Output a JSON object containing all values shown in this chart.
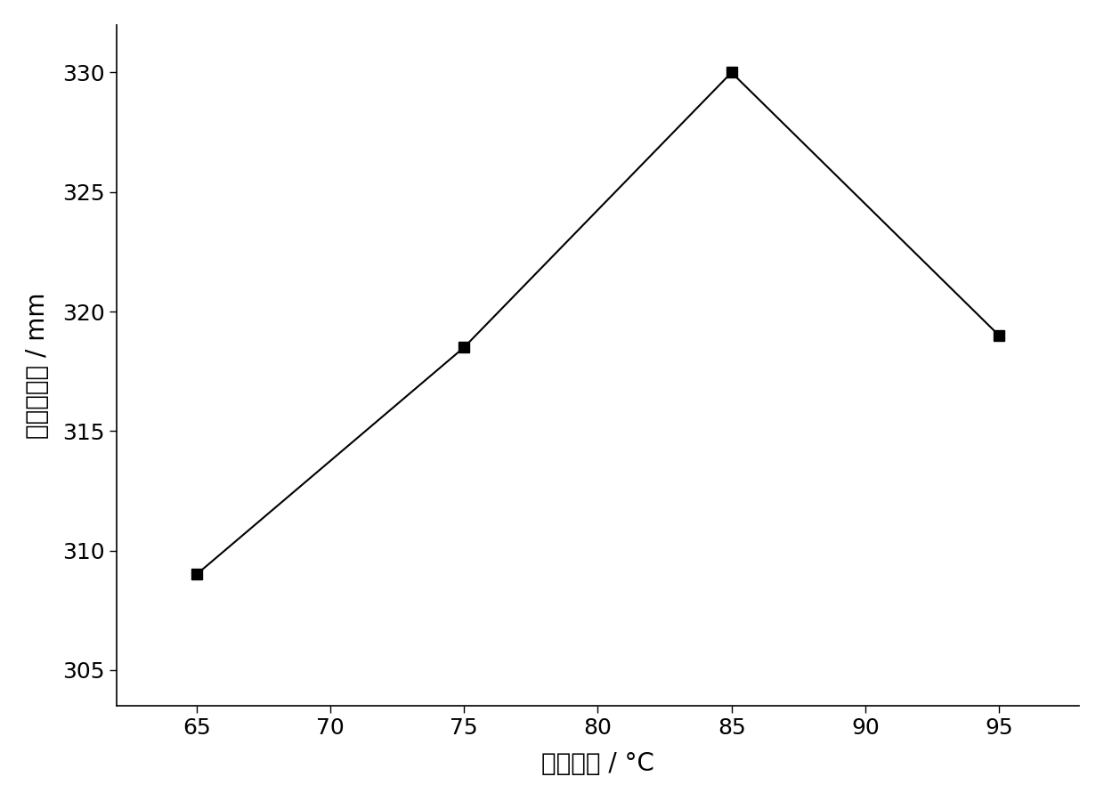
{
  "x": [
    65,
    75,
    85,
    95
  ],
  "y": [
    309,
    318.5,
    330,
    319
  ],
  "xlabel": "反应温度 / °C",
  "ylabel": "净浆流动度 / mm",
  "xlim": [
    62,
    98
  ],
  "ylim": [
    303.5,
    332
  ],
  "xticks": [
    65,
    70,
    75,
    80,
    85,
    90,
    95
  ],
  "yticks": [
    305,
    310,
    315,
    320,
    325,
    330
  ],
  "line_color": "#000000",
  "marker": "s",
  "marker_color": "#000000",
  "marker_size": 8,
  "line_width": 1.5,
  "background_color": "#ffffff",
  "axis_label_fontsize": 20,
  "tick_fontsize": 18
}
